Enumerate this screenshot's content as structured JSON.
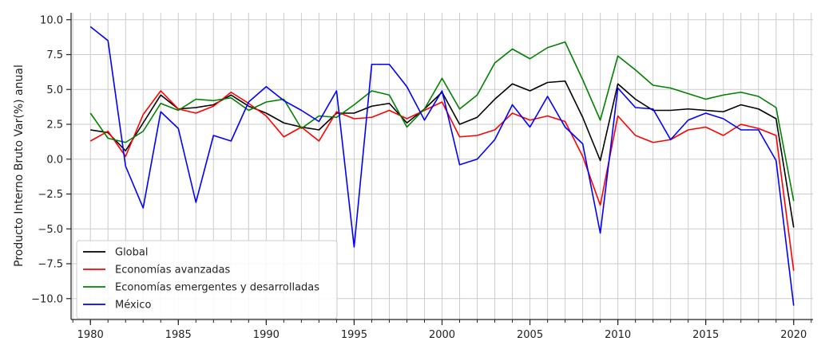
{
  "chart_data": {
    "type": "line",
    "title": "",
    "xlabel": "",
    "ylabel": "Producto Interno Bruto Var(%) anual",
    "xlim": [
      1978.9,
      2021.1
    ],
    "ylim": [
      -11.5,
      10.5
    ],
    "xticks": [
      1980,
      1985,
      1990,
      1995,
      2000,
      2005,
      2010,
      2015,
      2020
    ],
    "xtick_labels": [
      "1980",
      "1985",
      "1990",
      "1995",
      "2000",
      "2005",
      "2010",
      "2015",
      "2020"
    ],
    "yticks": [
      -10,
      -7.5,
      -5,
      -2.5,
      0,
      2.5,
      5,
      7.5,
      10
    ],
    "ytick_labels": [
      "−10.0",
      "−7.5",
      "−5.0",
      "−2.5",
      "0.0",
      "2.5",
      "5.0",
      "7.5",
      "10.0"
    ],
    "grid": true,
    "legend_position": "lower-left",
    "x": [
      1980,
      1981,
      1982,
      1983,
      1984,
      1985,
      1986,
      1987,
      1988,
      1989,
      1990,
      1991,
      1992,
      1993,
      1994,
      1995,
      1996,
      1997,
      1998,
      1999,
      2000,
      2001,
      2002,
      2003,
      2004,
      2005,
      2006,
      2007,
      2008,
      2009,
      2010,
      2011,
      2012,
      2013,
      2014,
      2015,
      2016,
      2017,
      2018,
      2019,
      2020
    ],
    "series": [
      {
        "name": "Global",
        "color": "#000000",
        "values": [
          2.1,
          1.9,
          0.6,
          2.6,
          4.6,
          3.6,
          3.7,
          3.9,
          4.6,
          3.8,
          3.3,
          2.6,
          2.3,
          2.1,
          3.3,
          3.3,
          3.8,
          4.0,
          2.6,
          3.6,
          4.8,
          2.5,
          3.0,
          4.3,
          5.4,
          4.9,
          5.5,
          5.6,
          3.0,
          -0.1,
          5.4,
          4.3,
          3.5,
          3.5,
          3.6,
          3.5,
          3.4,
          3.9,
          3.6,
          2.9,
          -4.9
        ]
      },
      {
        "name": "Economías avanzadas",
        "color": "#ff0000",
        "values": [
          1.3,
          2.0,
          0.2,
          3.2,
          4.9,
          3.6,
          3.3,
          3.8,
          4.8,
          4.0,
          3.1,
          1.6,
          2.3,
          1.3,
          3.4,
          2.9,
          3.0,
          3.5,
          2.9,
          3.5,
          4.1,
          1.6,
          1.7,
          2.1,
          3.3,
          2.8,
          3.1,
          2.7,
          0.2,
          -3.3,
          3.1,
          1.7,
          1.2,
          1.4,
          2.1,
          2.3,
          1.7,
          2.5,
          2.2,
          1.7,
          -8.0
        ]
      },
      {
        "name": "Economías emergentes y desarrolladas",
        "color": "#008000",
        "values": [
          3.3,
          1.5,
          1.2,
          2.0,
          4.0,
          3.5,
          4.3,
          4.2,
          4.4,
          3.5,
          4.1,
          4.3,
          2.2,
          3.1,
          3.0,
          3.9,
          4.9,
          4.6,
          2.3,
          3.6,
          5.8,
          3.6,
          4.6,
          6.9,
          7.9,
          7.2,
          8.0,
          8.4,
          5.7,
          2.8,
          7.4,
          6.4,
          5.3,
          5.1,
          4.7,
          4.3,
          4.6,
          4.8,
          4.5,
          3.7,
          -3.0
        ]
      },
      {
        "name": "México",
        "color": "#0000ff",
        "values": [
          9.5,
          8.5,
          -0.5,
          -3.5,
          3.4,
          2.2,
          -3.1,
          1.7,
          1.3,
          4.1,
          5.2,
          4.2,
          3.5,
          2.7,
          4.9,
          -6.3,
          6.8,
          6.8,
          5.2,
          2.8,
          4.9,
          -0.4,
          0.0,
          1.4,
          3.9,
          2.3,
          4.5,
          2.3,
          1.1,
          -5.3,
          5.1,
          3.7,
          3.6,
          1.4,
          2.8,
          3.3,
          2.9,
          2.1,
          2.1,
          -0.1,
          -10.5
        ]
      }
    ]
  }
}
